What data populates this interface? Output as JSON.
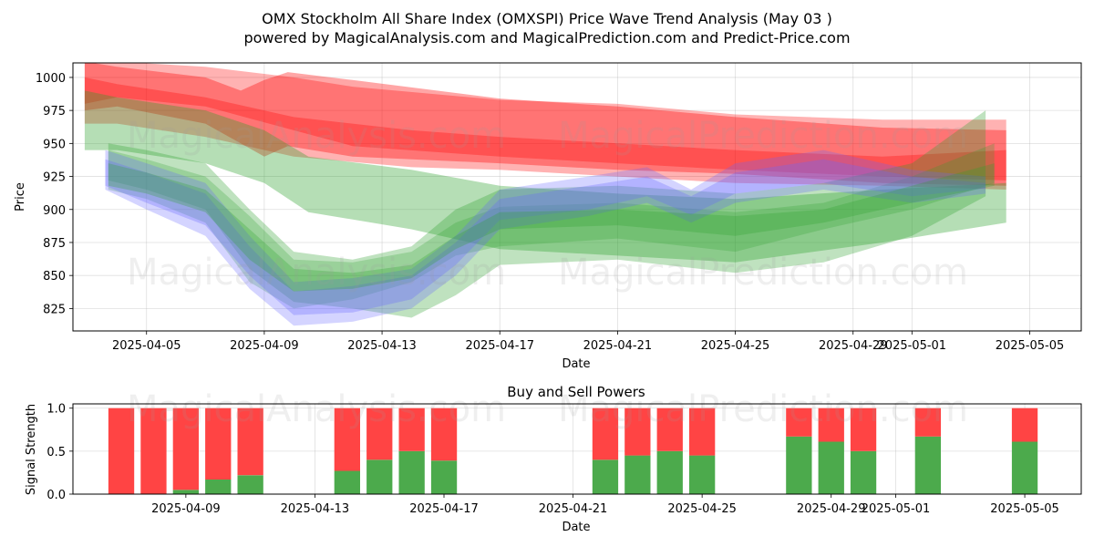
{
  "title_line1": "OMX Stockholm All Share Index (OMXSPI) Price Wave Trend Analysis (May 03 )",
  "title_line2": "powered by MagicalAnalysis.com and MagicalPrediction.com and Predict-Price.com",
  "watermarks": [
    "MagicalAnalysis.com",
    "MagicalPrediction.com"
  ],
  "colors": {
    "red": "#ff0000",
    "green": "#2ca02c",
    "blue": "#6666ff",
    "buy": "#4caa4c",
    "sell": "#ff4444"
  },
  "chart_data": [
    {
      "type": "area",
      "title": "",
      "xlabel": "Date",
      "ylabel": "Price",
      "xlim": [
        "2025-04-02 12:00",
        "2025-05-06 18:00"
      ],
      "ylim": [
        808,
        1011
      ],
      "x_ticks": [
        "2025-04-05",
        "2025-04-09",
        "2025-04-13",
        "2025-04-17",
        "2025-04-21",
        "2025-04-25",
        "2025-04-29",
        "2025-05-01",
        "2025-05-05"
      ],
      "y_ticks": [
        825,
        850,
        875,
        900,
        925,
        950,
        975,
        1000
      ],
      "grid": true,
      "series": [
        {
          "name": "red band 1",
          "color": "red",
          "opacity": 0.3,
          "x": [
            2.9,
            4,
            7,
            10,
            12,
            17,
            21,
            25,
            30,
            34.2
          ],
          "upper": [
            1015,
            1012,
            1008,
            1000,
            993,
            983,
            980,
            972,
            968,
            968
          ],
          "lower": [
            980,
            985,
            978,
            960,
            948,
            940,
            935,
            930,
            925,
            922
          ]
        },
        {
          "name": "red band 2",
          "color": "red",
          "opacity": 0.35,
          "x": [
            2.9,
            4,
            7,
            8.2,
            9,
            9.8,
            12,
            17,
            21,
            25,
            30,
            34.2
          ],
          "upper": [
            1012,
            1008,
            1000,
            990,
            998,
            1004,
            998,
            984,
            978,
            970,
            962,
            960
          ],
          "lower": [
            975,
            978,
            965,
            950,
            940,
            948,
            940,
            935,
            930,
            927,
            920,
            918
          ]
        },
        {
          "name": "red band 3",
          "color": "red",
          "opacity": 0.3,
          "x": [
            2.9,
            4,
            7,
            10,
            14,
            17,
            21,
            25,
            30,
            34.2
          ],
          "upper": [
            1000,
            995,
            985,
            970,
            960,
            955,
            950,
            945,
            940,
            945
          ],
          "lower": [
            965,
            965,
            955,
            940,
            932,
            930,
            925,
            920,
            918,
            915
          ]
        },
        {
          "name": "green band 1",
          "color": "green",
          "opacity": 0.35,
          "x": [
            2.9,
            4,
            7,
            9,
            10.5,
            14,
            17,
            21,
            25,
            30,
            34.2
          ],
          "upper": [
            990,
            985,
            975,
            960,
            940,
            930,
            918,
            912,
            908,
            915,
            920
          ],
          "lower": [
            945,
            945,
            935,
            920,
            898,
            885,
            870,
            865,
            860,
            875,
            890
          ]
        },
        {
          "name": "green band 2",
          "color": "green",
          "opacity": 0.3,
          "x": [
            3.7,
            5,
            7,
            8.5,
            10,
            12,
            14,
            15.5,
            17,
            21,
            25,
            28,
            31,
            33.5
          ],
          "upper": [
            950,
            945,
            935,
            900,
            868,
            862,
            872,
            900,
            915,
            918,
            912,
            920,
            935,
            975
          ],
          "lower": [
            922,
            915,
            900,
            855,
            830,
            825,
            818,
            835,
            858,
            862,
            852,
            860,
            880,
            910
          ]
        },
        {
          "name": "green band 3",
          "color": "green",
          "opacity": 0.25,
          "x": [
            3.7,
            5,
            7,
            8.5,
            10,
            12,
            14,
            15.5,
            17,
            21,
            25,
            28,
            31,
            33.8
          ],
          "upper": [
            945,
            938,
            925,
            895,
            862,
            860,
            868,
            890,
            902,
            905,
            898,
            905,
            925,
            950
          ],
          "lower": [
            915,
            908,
            890,
            845,
            825,
            832,
            845,
            865,
            872,
            878,
            868,
            885,
            900,
            920
          ]
        },
        {
          "name": "blue band 1",
          "color": "blue",
          "opacity": 0.28,
          "x": [
            3.6,
            5,
            7,
            8.5,
            10,
            12,
            14,
            15.5,
            17,
            20,
            22,
            23.5,
            25,
            28,
            31,
            33.5
          ],
          "upper": [
            945,
            935,
            920,
            880,
            845,
            848,
            855,
            880,
            915,
            925,
            932,
            915,
            935,
            945,
            930,
            925
          ],
          "lower": [
            915,
            900,
            880,
            840,
            812,
            815,
            825,
            850,
            885,
            895,
            905,
            890,
            905,
            915,
            905,
            912
          ]
        },
        {
          "name": "blue band 2",
          "color": "blue",
          "opacity": 0.3,
          "x": [
            3.6,
            5,
            7,
            8.5,
            10,
            12,
            14,
            15.5,
            17,
            20,
            22,
            23.5,
            25,
            28,
            31,
            33.5
          ],
          "upper": [
            938,
            928,
            912,
            872,
            838,
            842,
            850,
            875,
            908,
            918,
            925,
            910,
            928,
            938,
            925,
            920
          ],
          "lower": [
            918,
            905,
            888,
            850,
            820,
            822,
            832,
            858,
            892,
            900,
            910,
            896,
            912,
            920,
            910,
            916
          ]
        },
        {
          "name": "green band 4",
          "color": "green",
          "opacity": 0.28,
          "x": [
            3.7,
            5,
            7,
            8.5,
            10,
            12,
            14,
            15.5,
            17,
            21,
            25,
            28,
            31,
            33.8
          ],
          "upper": [
            935,
            928,
            915,
            885,
            855,
            852,
            858,
            880,
            898,
            900,
            895,
            900,
            918,
            935
          ],
          "lower": [
            918,
            912,
            898,
            862,
            838,
            840,
            848,
            870,
            885,
            888,
            880,
            890,
            905,
            918
          ]
        }
      ]
    },
    {
      "type": "bar",
      "title": "Buy and Sell Powers",
      "xlabel": "Date",
      "ylabel": "Signal Strength",
      "xlim": [
        "2025-04-05 12:00",
        "2025-05-06 18:00"
      ],
      "ylim": [
        0,
        1.05
      ],
      "x_ticks": [
        "2025-04-09",
        "2025-04-13",
        "2025-04-17",
        "2025-04-21",
        "2025-04-25",
        "2025-04-29",
        "2025-05-01",
        "2025-05-05"
      ],
      "y_ticks": [
        "0.0",
        "0.5",
        "1.0"
      ],
      "grid": true,
      "series": [
        {
          "name": "Buy",
          "color": "buy"
        },
        {
          "name": "Sell",
          "color": "sell"
        }
      ],
      "categories": [
        "2025-04-07",
        "2025-04-08",
        "2025-04-09",
        "2025-04-10",
        "2025-04-11",
        "2025-04-14",
        "2025-04-15",
        "2025-04-16",
        "2025-04-17",
        "2025-04-22",
        "2025-04-23",
        "2025-04-24",
        "2025-04-25",
        "2025-04-28",
        "2025-04-29",
        "2025-04-30",
        "2025-05-02",
        "2025-05-05"
      ],
      "buy": [
        0.0,
        0.0,
        0.05,
        0.17,
        0.22,
        0.27,
        0.4,
        0.5,
        0.39,
        0.4,
        0.45,
        0.5,
        0.45,
        0.67,
        0.61,
        0.5,
        0.67,
        0.61
      ],
      "sell": [
        1.0,
        1.0,
        0.95,
        0.83,
        0.78,
        0.73,
        0.6,
        0.5,
        0.61,
        0.6,
        0.55,
        0.5,
        0.55,
        0.33,
        0.39,
        0.5,
        0.33,
        0.39
      ]
    }
  ]
}
